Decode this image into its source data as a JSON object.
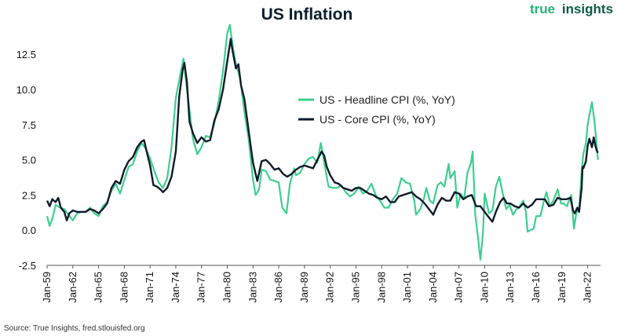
{
  "brand": {
    "text_a": "true",
    "text_b": "insights",
    "color_a": "#22b573",
    "color_b": "#0d5c46"
  },
  "source": "Source: True Insights, fred.stlouisfed.org",
  "colors": {
    "headline": "#3ccf8e",
    "core": "#0f1b2a",
    "axis": "#555555"
  },
  "chart_data": {
    "type": "line",
    "title": "US Inflation",
    "xlabel": "",
    "ylabel": "",
    "ylim": [
      -2.5,
      14.8
    ],
    "xlim": [
      1959.0,
      2023.5
    ],
    "yticks": [
      -2.5,
      0.0,
      2.5,
      5.0,
      7.5,
      10.0,
      12.5
    ],
    "ytick_labels": [
      "-2.5",
      "0.0",
      "2.5",
      "5.0",
      "7.5",
      "10.0",
      "12.5"
    ],
    "xtick_labels": [
      "Jan-59",
      "Jan-62",
      "Jan-65",
      "Jan-68",
      "Jan-71",
      "Jan-74",
      "Jan-77",
      "Jan-80",
      "Jan-83",
      "Jan-86",
      "Jan-89",
      "Jan-92",
      "Jan-95",
      "Jan-98",
      "Jan-01",
      "Jan-04",
      "Jan-07",
      "Jan-10",
      "Jan-13",
      "Jan-16",
      "Jan-19",
      "Jan-22"
    ],
    "grid": false,
    "legend_position": "upper-right",
    "series": [
      {
        "name": "US - Headline CPI (%, YoY)",
        "color": "#3ccf8e",
        "points": [
          [
            1959.0,
            1.0
          ],
          [
            1959.3,
            0.3
          ],
          [
            1959.6,
            0.8
          ],
          [
            1960.0,
            1.8
          ],
          [
            1960.5,
            1.6
          ],
          [
            1961.0,
            1.5
          ],
          [
            1961.5,
            1.1
          ],
          [
            1962.0,
            0.7
          ],
          [
            1962.5,
            1.2
          ],
          [
            1963.0,
            1.3
          ],
          [
            1963.5,
            1.3
          ],
          [
            1964.0,
            1.6
          ],
          [
            1964.5,
            1.2
          ],
          [
            1965.0,
            1.0
          ],
          [
            1965.5,
            1.7
          ],
          [
            1966.0,
            2.0
          ],
          [
            1966.5,
            2.8
          ],
          [
            1967.0,
            3.3
          ],
          [
            1967.5,
            2.6
          ],
          [
            1968.0,
            3.6
          ],
          [
            1968.5,
            4.5
          ],
          [
            1969.0,
            4.7
          ],
          [
            1969.5,
            5.6
          ],
          [
            1970.0,
            6.2
          ],
          [
            1970.5,
            5.8
          ],
          [
            1971.0,
            5.1
          ],
          [
            1971.5,
            4.2
          ],
          [
            1972.0,
            3.4
          ],
          [
            1972.5,
            3.0
          ],
          [
            1973.0,
            3.7
          ],
          [
            1973.5,
            5.9
          ],
          [
            1974.0,
            9.4
          ],
          [
            1974.5,
            11.0
          ],
          [
            1974.9,
            12.2
          ],
          [
            1975.3,
            10.0
          ],
          [
            1975.7,
            8.0
          ],
          [
            1976.0,
            6.5
          ],
          [
            1976.5,
            5.4
          ],
          [
            1977.0,
            5.9
          ],
          [
            1977.5,
            6.7
          ],
          [
            1978.0,
            6.6
          ],
          [
            1978.5,
            7.6
          ],
          [
            1979.0,
            9.2
          ],
          [
            1979.5,
            11.3
          ],
          [
            1980.0,
            14.0
          ],
          [
            1980.3,
            14.6
          ],
          [
            1980.7,
            12.8
          ],
          [
            1981.0,
            11.8
          ],
          [
            1981.5,
            10.8
          ],
          [
            1982.0,
            8.4
          ],
          [
            1982.5,
            6.4
          ],
          [
            1983.0,
            3.6
          ],
          [
            1983.3,
            2.5
          ],
          [
            1983.7,
            2.9
          ],
          [
            1984.0,
            4.3
          ],
          [
            1984.5,
            4.2
          ],
          [
            1985.0,
            3.6
          ],
          [
            1985.5,
            3.5
          ],
          [
            1986.0,
            3.4
          ],
          [
            1986.4,
            1.6
          ],
          [
            1986.9,
            1.2
          ],
          [
            1987.3,
            3.3
          ],
          [
            1987.8,
            4.4
          ],
          [
            1988.0,
            3.9
          ],
          [
            1988.5,
            4.1
          ],
          [
            1989.0,
            4.7
          ],
          [
            1989.5,
            5.1
          ],
          [
            1990.0,
            5.2
          ],
          [
            1990.5,
            4.8
          ],
          [
            1990.9,
            6.2
          ],
          [
            1991.3,
            4.8
          ],
          [
            1991.8,
            3.1
          ],
          [
            1992.3,
            3.0
          ],
          [
            1992.8,
            3.0
          ],
          [
            1993.3,
            3.2
          ],
          [
            1993.8,
            2.7
          ],
          [
            1994.3,
            2.4
          ],
          [
            1994.8,
            2.6
          ],
          [
            1995.3,
            3.1
          ],
          [
            1995.8,
            2.6
          ],
          [
            1996.3,
            2.8
          ],
          [
            1996.8,
            3.3
          ],
          [
            1997.3,
            2.5
          ],
          [
            1997.8,
            2.1
          ],
          [
            1998.3,
            1.6
          ],
          [
            1998.8,
            1.6
          ],
          [
            1999.3,
            2.2
          ],
          [
            1999.8,
            2.6
          ],
          [
            2000.3,
            3.7
          ],
          [
            2000.8,
            3.4
          ],
          [
            2001.3,
            3.3
          ],
          [
            2001.8,
            2.1
          ],
          [
            2002.0,
            1.1
          ],
          [
            2002.5,
            1.5
          ],
          [
            2002.9,
            2.2
          ],
          [
            2003.2,
            3.0
          ],
          [
            2003.6,
            2.1
          ],
          [
            2004.0,
            1.9
          ],
          [
            2004.5,
            3.2
          ],
          [
            2004.9,
            3.4
          ],
          [
            2005.3,
            3.1
          ],
          [
            2005.8,
            4.7
          ],
          [
            2006.0,
            3.7
          ],
          [
            2006.5,
            4.2
          ],
          [
            2006.8,
            1.6
          ],
          [
            2007.2,
            2.6
          ],
          [
            2007.6,
            2.2
          ],
          [
            2008.0,
            4.1
          ],
          [
            2008.4,
            4.8
          ],
          [
            2008.6,
            5.6
          ],
          [
            2008.9,
            1.1
          ],
          [
            2009.2,
            -0.4
          ],
          [
            2009.5,
            -2.1
          ],
          [
            2009.8,
            -0.2
          ],
          [
            2010.0,
            2.6
          ],
          [
            2010.5,
            1.2
          ],
          [
            2010.9,
            1.4
          ],
          [
            2011.3,
            3.1
          ],
          [
            2011.7,
            3.8
          ],
          [
            2012.0,
            2.9
          ],
          [
            2012.5,
            1.5
          ],
          [
            2012.9,
            1.8
          ],
          [
            2013.3,
            1.1
          ],
          [
            2013.7,
            1.5
          ],
          [
            2014.0,
            1.6
          ],
          [
            2014.5,
            2.1
          ],
          [
            2014.8,
            1.3
          ],
          [
            2015.0,
            -0.1
          ],
          [
            2015.3,
            0.0
          ],
          [
            2015.7,
            0.1
          ],
          [
            2016.0,
            1.0
          ],
          [
            2016.5,
            1.0
          ],
          [
            2016.9,
            2.1
          ],
          [
            2017.2,
            2.7
          ],
          [
            2017.6,
            1.7
          ],
          [
            2018.0,
            2.1
          ],
          [
            2018.5,
            2.9
          ],
          [
            2018.9,
            1.9
          ],
          [
            2019.2,
            1.9
          ],
          [
            2019.6,
            1.7
          ],
          [
            2019.9,
            2.3
          ],
          [
            2020.1,
            2.5
          ],
          [
            2020.4,
            0.1
          ],
          [
            2020.7,
            1.3
          ],
          [
            2021.0,
            1.4
          ],
          [
            2021.3,
            4.2
          ],
          [
            2021.5,
            5.4
          ],
          [
            2021.8,
            6.2
          ],
          [
            2022.0,
            7.5
          ],
          [
            2022.3,
            8.5
          ],
          [
            2022.5,
            9.1
          ],
          [
            2022.8,
            7.7
          ],
          [
            2023.0,
            6.4
          ],
          [
            2023.2,
            5.0
          ]
        ]
      },
      {
        "name": "US - Core CPI (%, YoY)",
        "color": "#0f1b2a",
        "points": [
          [
            1959.0,
            2.1
          ],
          [
            1959.3,
            1.7
          ],
          [
            1959.6,
            2.2
          ],
          [
            1960.0,
            2.0
          ],
          [
            1960.3,
            2.3
          ],
          [
            1960.6,
            1.6
          ],
          [
            1961.0,
            1.3
          ],
          [
            1961.3,
            0.7
          ],
          [
            1961.6,
            1.2
          ],
          [
            1962.0,
            1.4
          ],
          [
            1962.5,
            1.3
          ],
          [
            1963.0,
            1.3
          ],
          [
            1963.5,
            1.3
          ],
          [
            1964.0,
            1.5
          ],
          [
            1964.5,
            1.4
          ],
          [
            1965.0,
            1.2
          ],
          [
            1965.5,
            1.5
          ],
          [
            1966.0,
            1.9
          ],
          [
            1966.5,
            3.0
          ],
          [
            1967.0,
            3.5
          ],
          [
            1967.5,
            3.3
          ],
          [
            1968.0,
            4.3
          ],
          [
            1968.5,
            4.9
          ],
          [
            1969.0,
            5.2
          ],
          [
            1969.5,
            5.9
          ],
          [
            1970.0,
            6.3
          ],
          [
            1970.3,
            6.4
          ],
          [
            1970.6,
            5.6
          ],
          [
            1971.0,
            4.6
          ],
          [
            1971.4,
            3.2
          ],
          [
            1971.8,
            3.1
          ],
          [
            1972.2,
            2.9
          ],
          [
            1972.5,
            2.7
          ],
          [
            1973.0,
            3.0
          ],
          [
            1973.5,
            3.8
          ],
          [
            1974.0,
            5.6
          ],
          [
            1974.4,
            9.5
          ],
          [
            1974.8,
            11.4
          ],
          [
            1975.0,
            11.9
          ],
          [
            1975.3,
            10.5
          ],
          [
            1975.6,
            7.7
          ],
          [
            1976.0,
            6.9
          ],
          [
            1976.5,
            6.2
          ],
          [
            1977.0,
            6.6
          ],
          [
            1977.5,
            6.3
          ],
          [
            1978.0,
            6.4
          ],
          [
            1978.5,
            7.8
          ],
          [
            1979.0,
            8.6
          ],
          [
            1979.5,
            10.0
          ],
          [
            1980.0,
            12.0
          ],
          [
            1980.4,
            13.6
          ],
          [
            1980.6,
            12.8
          ],
          [
            1981.0,
            11.5
          ],
          [
            1981.3,
            11.8
          ],
          [
            1981.6,
            10.3
          ],
          [
            1982.0,
            9.3
          ],
          [
            1982.5,
            7.0
          ],
          [
            1983.0,
            4.8
          ],
          [
            1983.5,
            3.5
          ],
          [
            1984.0,
            4.9
          ],
          [
            1984.5,
            5.0
          ],
          [
            1985.0,
            4.7
          ],
          [
            1985.5,
            4.3
          ],
          [
            1986.0,
            4.4
          ],
          [
            1986.5,
            4.0
          ],
          [
            1987.0,
            3.8
          ],
          [
            1987.5,
            4.0
          ],
          [
            1988.0,
            4.3
          ],
          [
            1988.5,
            4.5
          ],
          [
            1989.0,
            4.6
          ],
          [
            1989.5,
            4.5
          ],
          [
            1990.0,
            4.4
          ],
          [
            1990.5,
            5.0
          ],
          [
            1991.0,
            5.6
          ],
          [
            1991.3,
            5.3
          ],
          [
            1991.6,
            4.5
          ],
          [
            1992.0,
            3.9
          ],
          [
            1992.5,
            3.4
          ],
          [
            1993.0,
            3.3
          ],
          [
            1993.5,
            3.0
          ],
          [
            1994.0,
            2.9
          ],
          [
            1994.5,
            2.8
          ],
          [
            1995.0,
            3.0
          ],
          [
            1995.5,
            3.0
          ],
          [
            1996.0,
            2.8
          ],
          [
            1996.5,
            2.6
          ],
          [
            1997.0,
            2.5
          ],
          [
            1997.5,
            2.3
          ],
          [
            1998.0,
            2.2
          ],
          [
            1998.5,
            2.4
          ],
          [
            1999.0,
            2.0
          ],
          [
            1999.5,
            2.0
          ],
          [
            2000.0,
            2.4
          ],
          [
            2000.5,
            2.5
          ],
          [
            2001.0,
            2.6
          ],
          [
            2001.5,
            2.7
          ],
          [
            2002.0,
            2.4
          ],
          [
            2002.5,
            2.2
          ],
          [
            2003.0,
            1.9
          ],
          [
            2003.5,
            1.5
          ],
          [
            2004.0,
            1.1
          ],
          [
            2004.5,
            1.8
          ],
          [
            2005.0,
            2.3
          ],
          [
            2005.5,
            2.1
          ],
          [
            2006.0,
            2.1
          ],
          [
            2006.5,
            2.7
          ],
          [
            2007.0,
            2.6
          ],
          [
            2007.5,
            2.2
          ],
          [
            2008.0,
            2.4
          ],
          [
            2008.5,
            2.5
          ],
          [
            2009.0,
            1.7
          ],
          [
            2009.5,
            1.7
          ],
          [
            2010.0,
            1.3
          ],
          [
            2010.5,
            0.9
          ],
          [
            2010.9,
            0.6
          ],
          [
            2011.3,
            1.3
          ],
          [
            2011.8,
            2.0
          ],
          [
            2012.2,
            2.3
          ],
          [
            2012.6,
            1.9
          ],
          [
            2013.0,
            1.9
          ],
          [
            2013.5,
            1.7
          ],
          [
            2014.0,
            1.6
          ],
          [
            2014.5,
            1.9
          ],
          [
            2015.0,
            1.6
          ],
          [
            2015.5,
            1.8
          ],
          [
            2016.0,
            2.2
          ],
          [
            2016.5,
            2.2
          ],
          [
            2017.0,
            2.2
          ],
          [
            2017.5,
            1.7
          ],
          [
            2018.0,
            1.8
          ],
          [
            2018.5,
            2.3
          ],
          [
            2019.0,
            2.2
          ],
          [
            2019.5,
            2.2
          ],
          [
            2020.0,
            2.3
          ],
          [
            2020.3,
            1.4
          ],
          [
            2020.5,
            1.2
          ],
          [
            2020.8,
            1.6
          ],
          [
            2021.0,
            1.3
          ],
          [
            2021.3,
            3.0
          ],
          [
            2021.4,
            4.5
          ],
          [
            2021.5,
            4.4
          ],
          [
            2021.8,
            4.9
          ],
          [
            2022.0,
            6.0
          ],
          [
            2022.2,
            6.5
          ],
          [
            2022.5,
            5.9
          ],
          [
            2022.7,
            6.6
          ],
          [
            2022.9,
            6.0
          ],
          [
            2023.1,
            5.6
          ],
          [
            2023.2,
            5.5
          ]
        ]
      }
    ]
  }
}
